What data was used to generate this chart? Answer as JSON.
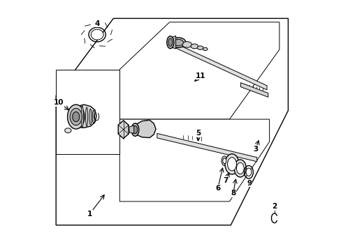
{
  "bg_color": "#ffffff",
  "line_color": "#000000",
  "label_color": "#000000",
  "figsize": [
    4.89,
    3.6
  ],
  "dpi": 100,
  "lw_thin": 0.7,
  "lw_med": 1.0,
  "lw_thick": 1.3
}
